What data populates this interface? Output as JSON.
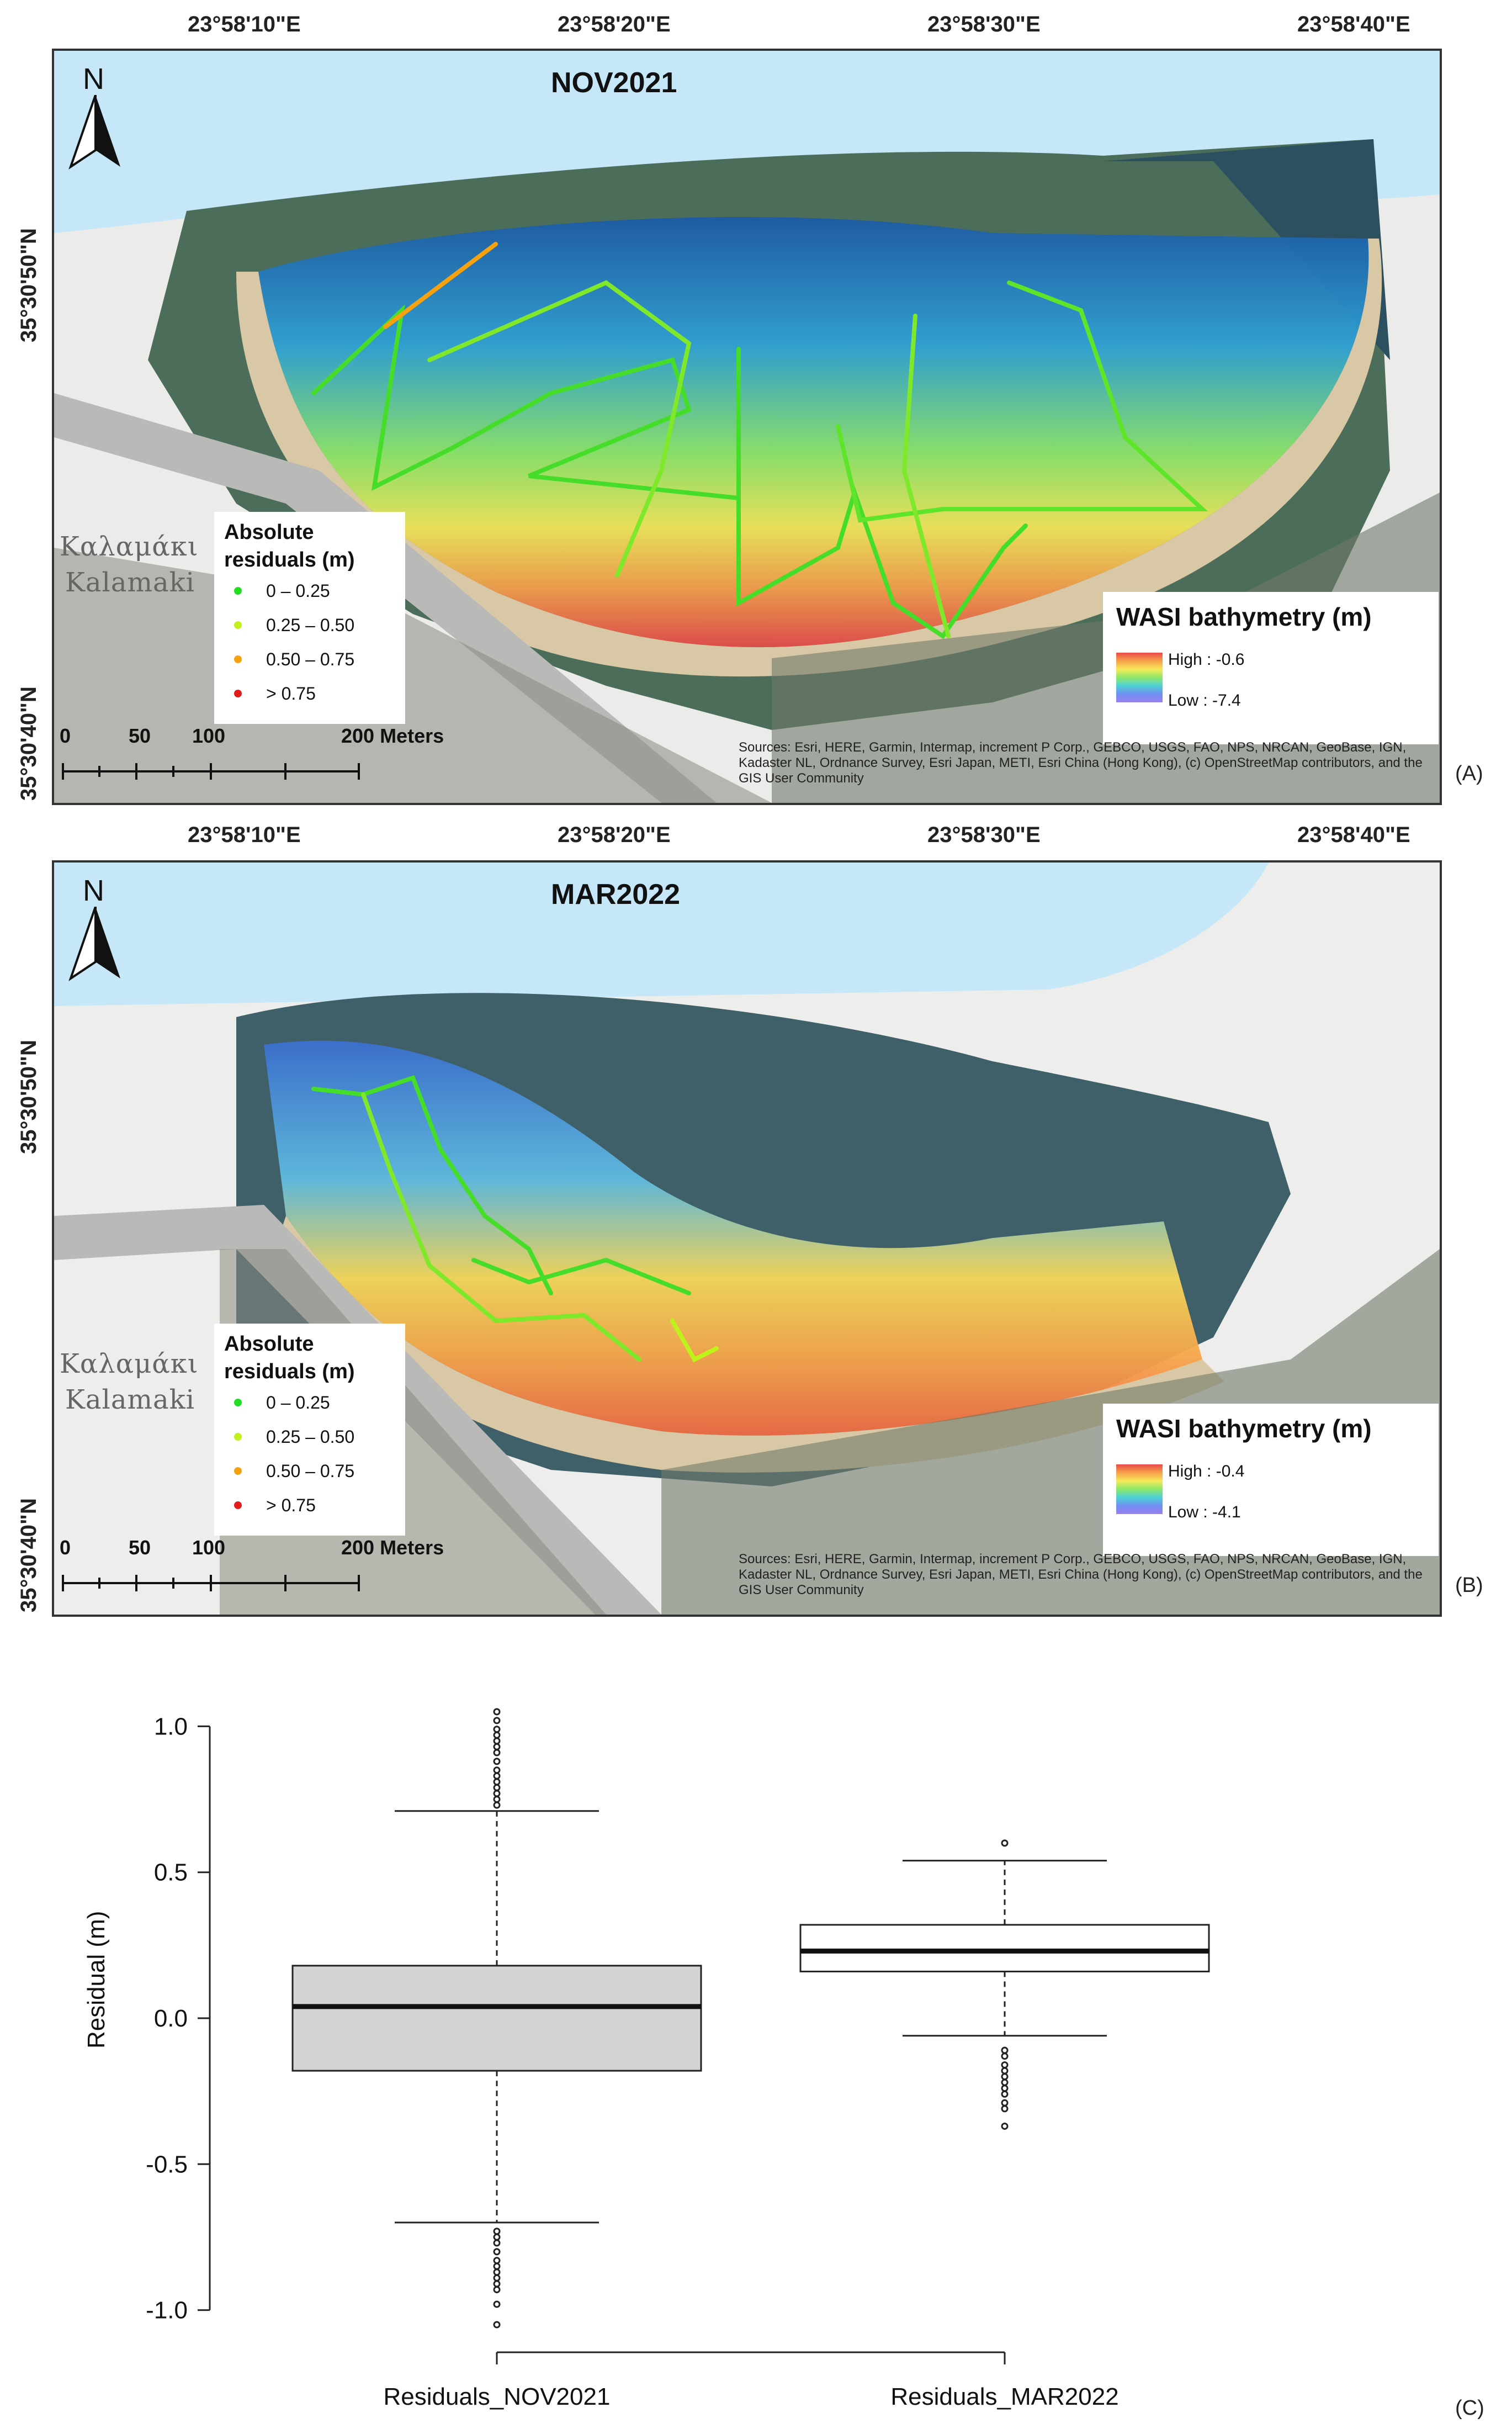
{
  "coordinates": {
    "longitudes": [
      "23°58'10\"E",
      "23°58'20\"E",
      "23°58'30\"E",
      "23°58'40\"E"
    ],
    "latitudes": [
      "35°30'50\"N",
      "35°30'40\"N"
    ]
  },
  "panels": [
    {
      "letter": "(A)",
      "title": "NOV2021",
      "north": "N",
      "legend": {
        "title_line1": "Absolute",
        "title_line2": "residuals (m)",
        "classes": [
          {
            "label": "0 – 0.25",
            "color": "#22dd22"
          },
          {
            "label": "0.25 – 0.50",
            "color": "#bff21a"
          },
          {
            "label": "0.50 – 0.75",
            "color": "#f5a20e"
          },
          {
            "label": "> 0.75",
            "color": "#e21b1b"
          }
        ]
      },
      "bathymetry": {
        "title": "WASI bathymetry (m)",
        "high": "High : -0.6",
        "low": "Low : -7.4"
      },
      "scalebar": {
        "labels": [
          "0",
          "50",
          "100",
          "200 Meters"
        ]
      },
      "place_names": [
        "Καλαμάκι",
        "Kalamaki"
      ],
      "sources": "Sources: Esri, HERE, Garmin, Intermap, increment P Corp., GEBCO, USGS, FAO, NPS, NRCAN, GeoBase, IGN, Kadaster NL, Ordnance Survey, Esri Japan, METI, Esri China (Hong Kong), (c) OpenStreetMap contributors, and the GIS User Community"
    },
    {
      "letter": "(B)",
      "title": "MAR2022",
      "north": "N",
      "legend": {
        "title_line1": "Absolute",
        "title_line2": "residuals (m)",
        "classes": [
          {
            "label": "0 – 0.25",
            "color": "#22dd22"
          },
          {
            "label": "0.25 – 0.50",
            "color": "#bff21a"
          },
          {
            "label": "0.50 – 0.75",
            "color": "#f5a20e"
          },
          {
            "label": "> 0.75",
            "color": "#e21b1b"
          }
        ]
      },
      "bathymetry": {
        "title": "WASI bathymetry (m)",
        "high": "High : -0.4",
        "low": "Low : -4.1"
      },
      "scalebar": {
        "labels": [
          "0",
          "50",
          "100",
          "200 Meters"
        ]
      },
      "place_names": [
        "Καλαμάκι",
        "Kalamaki"
      ],
      "sources": "Sources: Esri, HERE, Garmin, Intermap, increment P Corp., GEBCO, USGS, FAO, NPS, NRCAN, GeoBase, IGN, Kadaster NL, Ordnance Survey, Esri Japan, METI, Esri China (Hong Kong), (c) OpenStreetMap contributors, and the GIS User Community"
    }
  ],
  "boxplot_panel": {
    "letter": "(C)"
  },
  "chart_data": {
    "type": "box",
    "ylabel": "Residual (m)",
    "xlabel": "",
    "ylim": [
      -1.05,
      1.05
    ],
    "yticks": [
      -1.0,
      -0.5,
      0.0,
      0.5,
      1.0
    ],
    "ytick_labels": [
      "-1.0",
      "-0.5",
      "0.0",
      "0.5",
      "1.0"
    ],
    "grid": false,
    "boxes": [
      {
        "name": "Residuals_NOV2021",
        "fill": "#d3d3d3",
        "whisker_low": -0.7,
        "q1": -0.18,
        "median": 0.04,
        "q3": 0.18,
        "whisker_high": 0.71,
        "outliers": [
          1.05,
          1.02,
          0.99,
          0.97,
          0.95,
          0.93,
          0.91,
          0.88,
          0.85,
          0.83,
          0.81,
          0.79,
          0.77,
          0.75,
          0.73,
          -0.73,
          -0.75,
          -0.77,
          -0.8,
          -0.83,
          -0.85,
          -0.87,
          -0.89,
          -0.91,
          -0.93,
          -0.98,
          -1.05
        ]
      },
      {
        "name": "Residuals_MAR2022",
        "fill": "#ffffff",
        "whisker_low": -0.06,
        "q1": 0.16,
        "median": 0.23,
        "q3": 0.32,
        "whisker_high": 0.54,
        "outliers": [
          0.6,
          -0.11,
          -0.13,
          -0.16,
          -0.18,
          -0.2,
          -0.22,
          -0.24,
          -0.26,
          -0.29,
          -0.31,
          -0.37
        ]
      }
    ]
  }
}
